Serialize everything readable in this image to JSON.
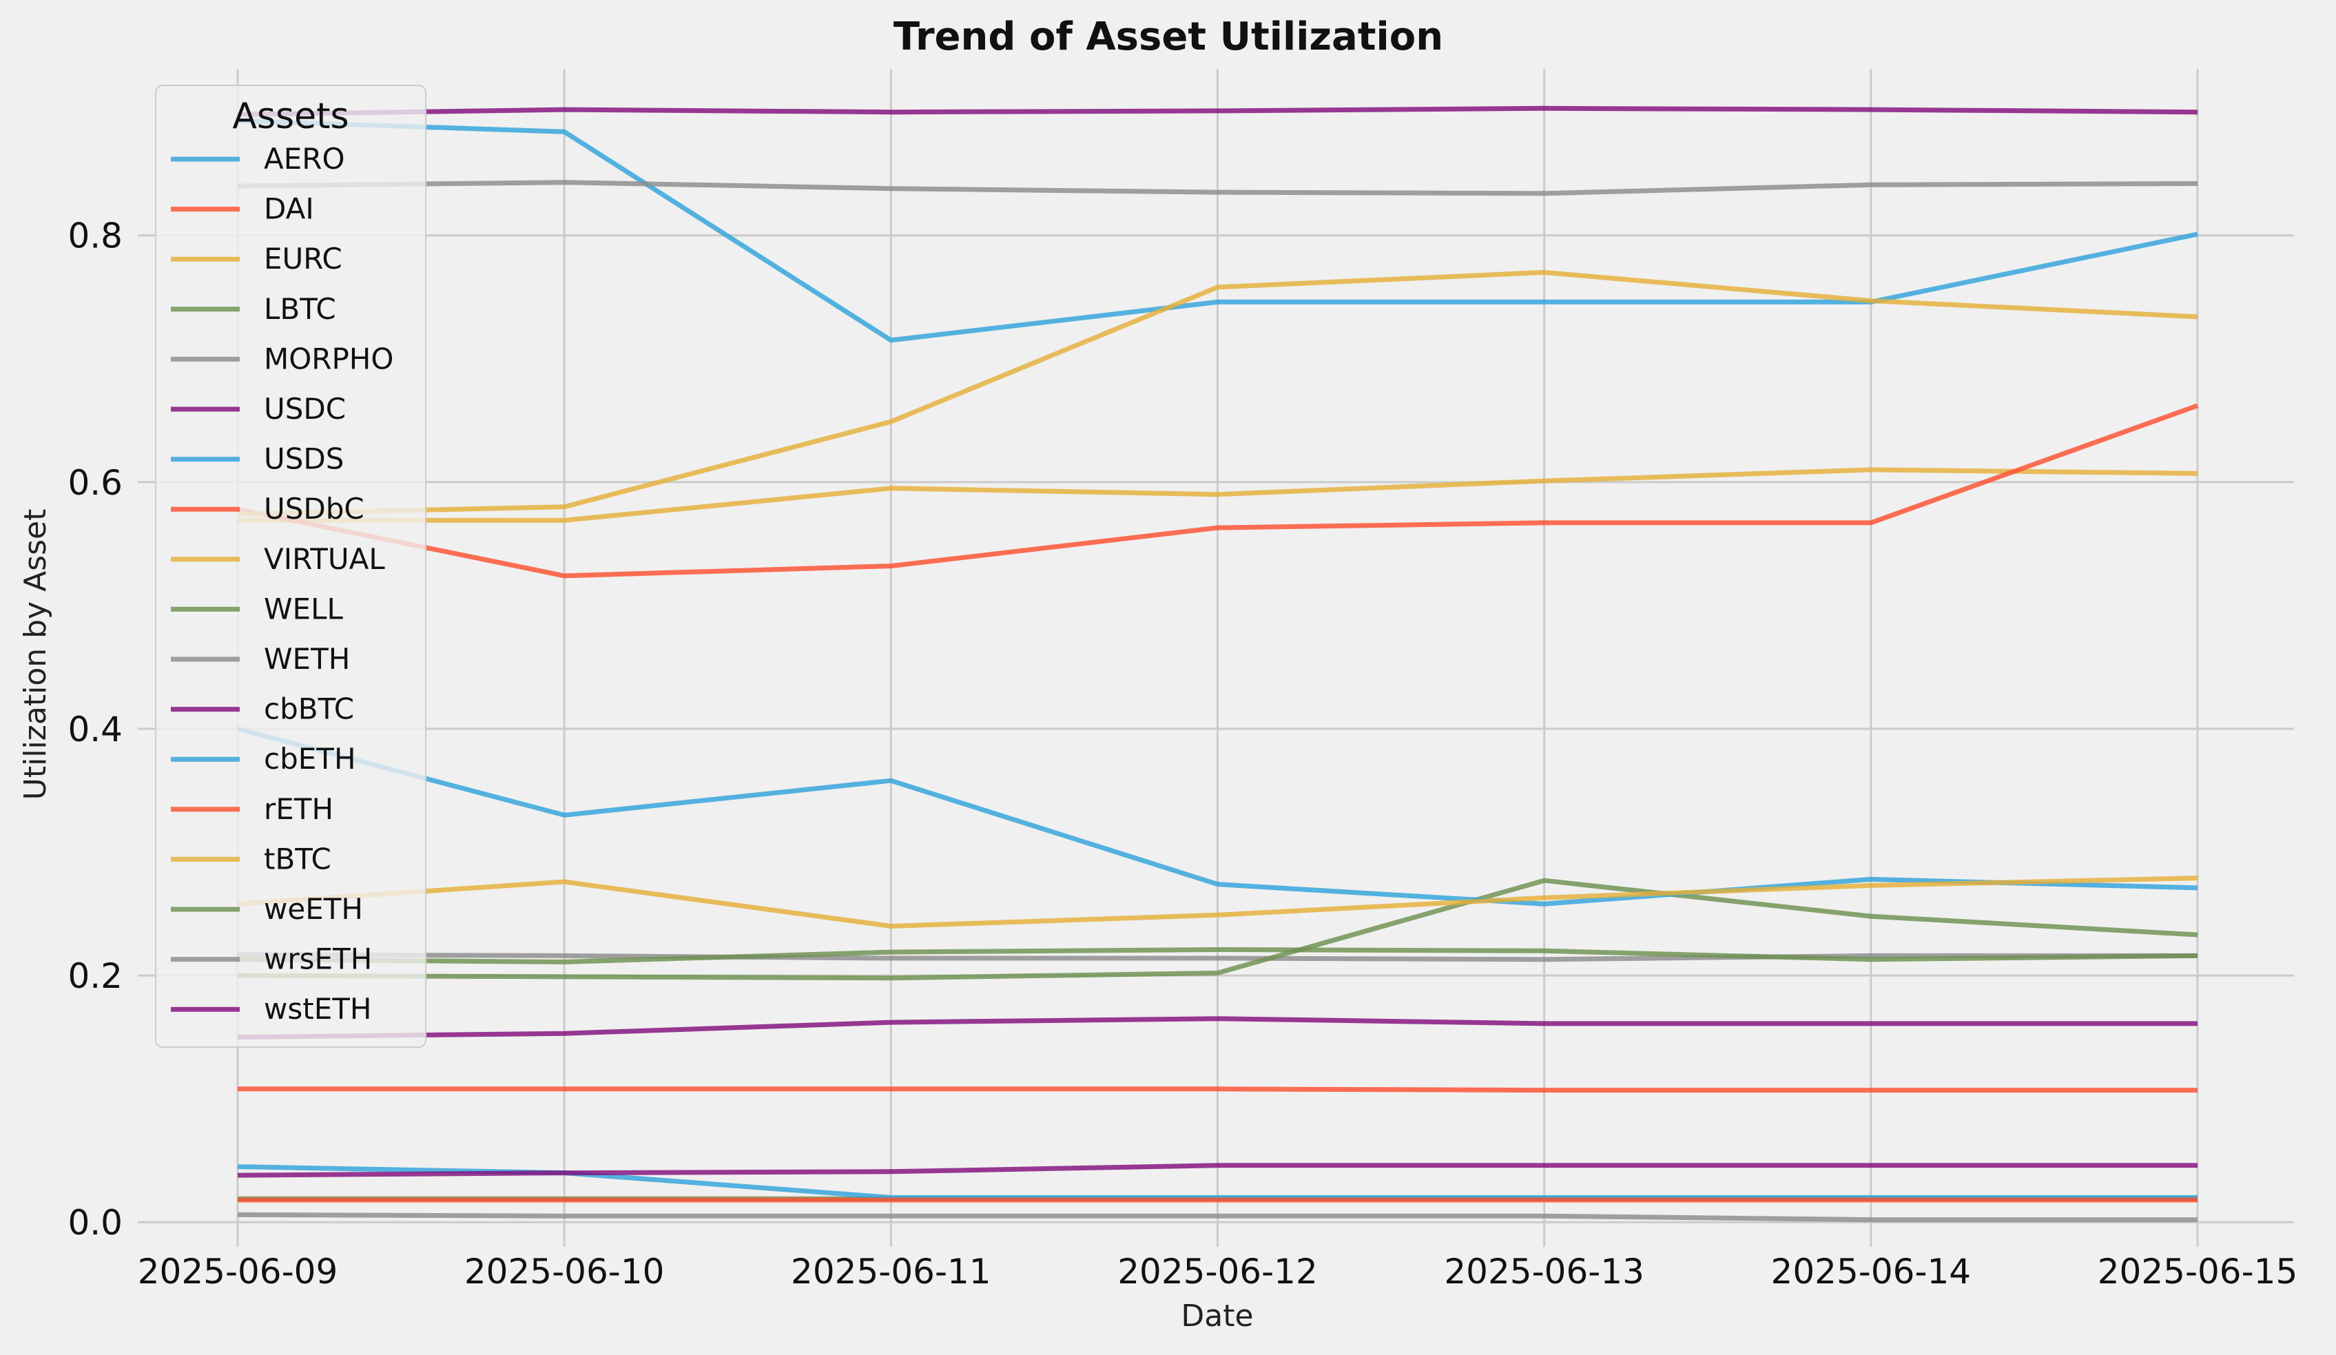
{
  "chart_data": {
    "type": "line",
    "title": "Trend of Asset Utilization",
    "xlabel": "Date",
    "ylabel": "Utilization by Asset",
    "x": [
      "2025-06-09",
      "2025-06-10",
      "2025-06-11",
      "2025-06-12",
      "2025-06-13",
      "2025-06-14",
      "2025-06-15"
    ],
    "ylim": [
      -0.02,
      0.935
    ],
    "yticks": [
      "0.0",
      "0.2",
      "0.4",
      "0.6",
      "0.8"
    ],
    "grid": true,
    "legend": {
      "title": "Assets",
      "placement": "upper-left"
    },
    "series": [
      {
        "name": "AERO",
        "color": "#30a2da",
        "values": [
          0.893,
          0.884,
          0.715,
          0.746,
          0.746,
          0.746,
          0.801
        ]
      },
      {
        "name": "DAI",
        "color": "#fc4f30",
        "values": [
          0.108,
          0.108,
          0.108,
          0.108,
          0.107,
          0.107,
          0.107
        ]
      },
      {
        "name": "EURC",
        "color": "#e5ae38",
        "values": [
          0.569,
          0.569,
          0.595,
          0.59,
          0.601,
          0.61,
          0.607
        ]
      },
      {
        "name": "LBTC",
        "color": "#6d904f",
        "values": [
          0.019,
          0.019,
          0.019,
          0.019,
          0.019,
          0.019,
          0.019
        ]
      },
      {
        "name": "MORPHO",
        "color": "#8b8b8b",
        "values": [
          0.217,
          0.216,
          0.214,
          0.214,
          0.213,
          0.216,
          0.216
        ]
      },
      {
        "name": "USDC",
        "color": "#810f7c",
        "values": [
          0.898,
          0.902,
          0.9,
          0.901,
          0.903,
          0.902,
          0.9
        ]
      },
      {
        "name": "USDS",
        "color": "#30a2da",
        "values": [
          0.045,
          0.04,
          0.02,
          0.02,
          0.02,
          0.02,
          0.02
        ]
      },
      {
        "name": "USDbC",
        "color": "#fc4f30",
        "values": [
          0.578,
          0.524,
          0.532,
          0.563,
          0.567,
          0.567,
          0.662
        ]
      },
      {
        "name": "VIRTUAL",
        "color": "#e5ae38",
        "values": [
          0.574,
          0.58,
          0.649,
          0.758,
          0.77,
          0.747,
          0.734
        ]
      },
      {
        "name": "WELL",
        "color": "#6d904f",
        "values": [
          0.2,
          0.199,
          0.198,
          0.202,
          0.277,
          0.248,
          0.233
        ]
      },
      {
        "name": "WETH",
        "color": "#8b8b8b",
        "values": [
          0.006,
          0.005,
          0.005,
          0.005,
          0.005,
          0.002,
          0.002
        ]
      },
      {
        "name": "cbBTC",
        "color": "#810f7c",
        "values": [
          0.038,
          0.04,
          0.041,
          0.046,
          0.046,
          0.046,
          0.046
        ]
      },
      {
        "name": "cbETH",
        "color": "#30a2da",
        "values": [
          0.4,
          0.33,
          0.358,
          0.274,
          0.258,
          0.278,
          0.271
        ]
      },
      {
        "name": "rETH",
        "color": "#fc4f30",
        "values": [
          0.018,
          0.018,
          0.018,
          0.018,
          0.018,
          0.018,
          0.018
        ]
      },
      {
        "name": "tBTC",
        "color": "#e5ae38",
        "values": [
          0.258,
          0.276,
          0.24,
          0.249,
          0.263,
          0.273,
          0.279
        ]
      },
      {
        "name": "weETH",
        "color": "#6d904f",
        "values": [
          0.213,
          0.211,
          0.219,
          0.221,
          0.22,
          0.213,
          0.216
        ]
      },
      {
        "name": "wrsETH",
        "color": "#8b8b8b",
        "values": [
          0.84,
          0.843,
          0.838,
          0.835,
          0.834,
          0.841,
          0.842
        ]
      },
      {
        "name": "wstETH",
        "color": "#810f7c",
        "values": [
          0.15,
          0.153,
          0.162,
          0.165,
          0.161,
          0.161,
          0.161
        ]
      }
    ]
  }
}
